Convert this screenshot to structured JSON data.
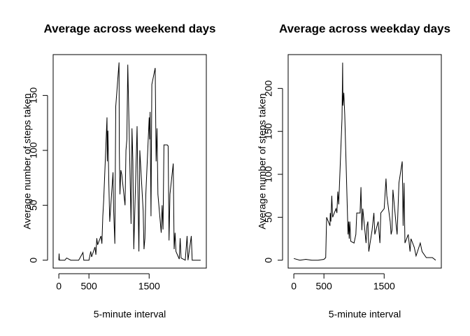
{
  "chart_data": [
    {
      "type": "line",
      "title": "Average across weekend days",
      "xlabel": "5-minute interval",
      "ylabel": "Average number of steps taken",
      "color": "#000000",
      "x": [
        0,
        5,
        10,
        100,
        130,
        200,
        330,
        400,
        415,
        500,
        530,
        545,
        600,
        615,
        630,
        645,
        700,
        715,
        730,
        745,
        800,
        805,
        815,
        830,
        845,
        900,
        910,
        930,
        945,
        1000,
        1005,
        1015,
        1030,
        1045,
        1100,
        1115,
        1130,
        1145,
        1200,
        1215,
        1230,
        1245,
        1300,
        1315,
        1330,
        1345,
        1400,
        1415,
        1430,
        1445,
        1500,
        1510,
        1515,
        1530,
        1545,
        1600,
        1615,
        1630,
        1645,
        1700,
        1715,
        1730,
        1745,
        1800,
        1815,
        1830,
        1845,
        1900,
        1915,
        1930,
        1945,
        2000,
        2015,
        2030,
        2100,
        2130,
        2145,
        2200,
        2215,
        2355
      ],
      "values": [
        0,
        6,
        0,
        0,
        2,
        0,
        0,
        7,
        0,
        0,
        8,
        3,
        12,
        5,
        20,
        14,
        22,
        15,
        40,
        55,
        130,
        90,
        118,
        70,
        35,
        80,
        45,
        15,
        140,
        180,
        100,
        60,
        82,
        78,
        50,
        100,
        110,
        178,
        33,
        120,
        90,
        10,
        122,
        60,
        8,
        100,
        45,
        10,
        20,
        60,
        130,
        110,
        135,
        40,
        160,
        175,
        90,
        120,
        60,
        25,
        50,
        28,
        105,
        105,
        104,
        18,
        60,
        88,
        10,
        25,
        8,
        1,
        20,
        2,
        0,
        22,
        0,
        22,
        0,
        0
      ],
      "xlim": [
        -94.2,
        2449.2
      ],
      "ylim": [
        -7.2,
        187.2
      ],
      "xticks": [
        0,
        500,
        1500
      ],
      "yticks": [
        0,
        50,
        100,
        150
      ]
    },
    {
      "type": "line",
      "title": "Average across weekday days",
      "xlabel": "5-minute interval",
      "ylabel": "Average number of steps taken",
      "color": "#000000",
      "x": [
        0,
        100,
        200,
        300,
        400,
        500,
        530,
        545,
        600,
        605,
        615,
        630,
        645,
        700,
        715,
        730,
        745,
        800,
        810,
        815,
        830,
        845,
        900,
        910,
        920,
        930,
        945,
        1000,
        1030,
        1045,
        1100,
        1115,
        1130,
        1145,
        1200,
        1215,
        1230,
        1245,
        1300,
        1330,
        1345,
        1400,
        1430,
        1445,
        1500,
        1530,
        1545,
        1600,
        1615,
        1630,
        1645,
        1700,
        1715,
        1730,
        1745,
        1800,
        1815,
        1830,
        1845,
        1900,
        1930,
        1945,
        2000,
        2030,
        2100,
        2130,
        2200,
        2300,
        2355
      ],
      "values": [
        2,
        0,
        1,
        0,
        0,
        1,
        3,
        50,
        40,
        55,
        45,
        75,
        50,
        60,
        55,
        80,
        65,
        165,
        230,
        180,
        195,
        170,
        30,
        45,
        25,
        45,
        22,
        20,
        30,
        55,
        55,
        85,
        35,
        60,
        20,
        40,
        45,
        10,
        35,
        55,
        30,
        45,
        20,
        55,
        60,
        95,
        75,
        45,
        30,
        35,
        82,
        40,
        30,
        60,
        90,
        115,
        40,
        90,
        20,
        30,
        10,
        25,
        15,
        5,
        20,
        10,
        3,
        3,
        0
      ],
      "xlim": [
        -94.2,
        2449.2
      ],
      "ylim": [
        -9.2,
        239.4
      ],
      "xticks": [
        0,
        500,
        1500
      ],
      "yticks": [
        0,
        50,
        100,
        150,
        200
      ]
    }
  ]
}
